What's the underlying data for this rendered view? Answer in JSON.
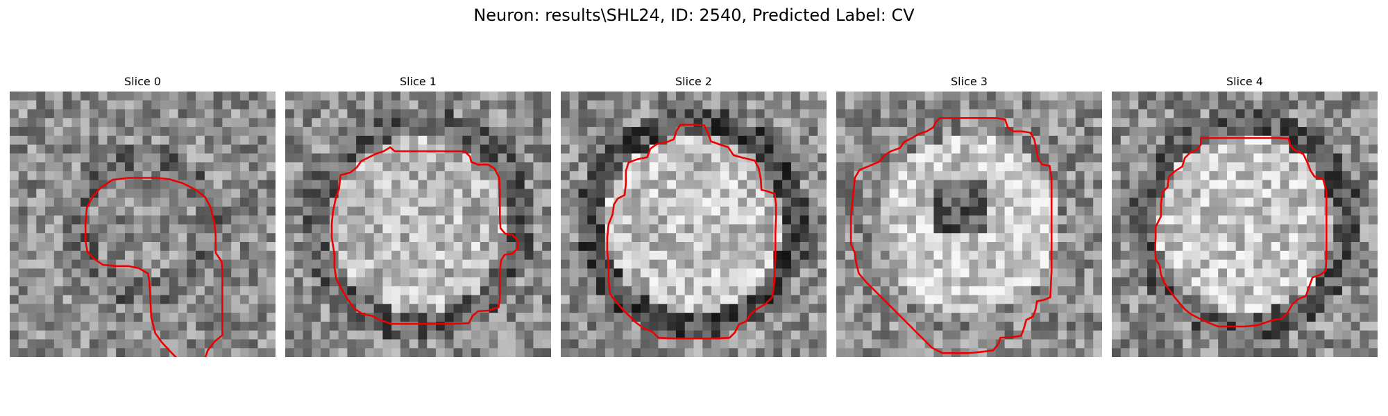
{
  "figure": {
    "title": "Neuron: results\\SHL24, ID: 2540, Predicted Label: CV",
    "contour_color": "#ee0000",
    "colormap": "gray"
  },
  "panels": [
    {
      "title": "Slice 0",
      "seed": 11,
      "inner_brightness": 0.55,
      "ring": 0.42,
      "contour": [
        [
          11,
          3.3
        ],
        [
          11,
          4.3
        ],
        [
          11.9,
          5.6
        ],
        [
          12,
          7
        ],
        [
          12,
          9
        ],
        [
          12,
          11
        ],
        [
          12,
          13
        ],
        [
          12,
          15
        ],
        [
          12,
          16.7
        ],
        [
          10.8,
          17.7
        ],
        [
          9.8,
          19
        ],
        [
          9.4,
          20.2
        ],
        [
          8,
          20.3
        ],
        [
          6,
          20.3
        ],
        [
          5.1,
          20.1
        ],
        [
          4.2,
          19.2
        ],
        [
          2.9,
          17.8
        ],
        [
          1.9,
          16.4
        ],
        [
          1.3,
          14
        ],
        [
          1.2,
          12
        ],
        [
          1.1,
          10
        ],
        [
          1,
          8.5
        ],
        [
          0.8,
          7.4
        ],
        [
          -0.6,
          6.6
        ],
        [
          -2.1,
          6.3
        ],
        [
          -4,
          6.3
        ],
        [
          -6,
          6.1
        ],
        [
          -7.3,
          5.2
        ],
        [
          -8.3,
          4.2
        ],
        [
          -8.6,
          2.5
        ],
        [
          -8.6,
          0
        ],
        [
          -8.4,
          -2.5
        ],
        [
          -7.5,
          -4.2
        ],
        [
          -6.3,
          -5.5
        ],
        [
          -4.5,
          -6.7
        ],
        [
          -2,
          -7
        ],
        [
          0,
          -7
        ],
        [
          2,
          -7
        ],
        [
          4,
          -6.8
        ],
        [
          6,
          -6.2
        ],
        [
          8,
          -5.2
        ],
        [
          9.4,
          -4.1
        ],
        [
          10.2,
          -2.6
        ],
        [
          10.8,
          -0.2
        ],
        [
          11,
          1.7
        ]
      ]
    },
    {
      "title": "Slice 1",
      "seed": 23,
      "inner_brightness": 0.72,
      "ring": 0.38,
      "contour": [
        [
          -3.5,
          -11
        ],
        [
          0,
          -11
        ],
        [
          4,
          -11
        ],
        [
          7,
          -11
        ],
        [
          7.8,
          -10.2
        ],
        [
          8,
          -9.4
        ],
        [
          9,
          -9
        ],
        [
          10.5,
          -9
        ],
        [
          11.5,
          -8.4
        ],
        [
          12.2,
          -7
        ],
        [
          12.3,
          -5
        ],
        [
          12.3,
          -3
        ],
        [
          12.3,
          -1
        ],
        [
          12.4,
          0.6
        ],
        [
          13.1,
          1.4
        ],
        [
          14.2,
          1.6
        ],
        [
          15,
          2.4
        ],
        [
          15,
          3.6
        ],
        [
          14.2,
          4.4
        ],
        [
          13,
          4.6
        ],
        [
          12.5,
          5.4
        ],
        [
          12.3,
          7
        ],
        [
          12.3,
          9
        ],
        [
          12.3,
          11
        ],
        [
          12.1,
          12.5
        ],
        [
          10.5,
          13
        ],
        [
          9,
          13.1
        ],
        [
          8.2,
          13.8
        ],
        [
          7.6,
          14.9
        ],
        [
          5,
          15
        ],
        [
          2,
          15
        ],
        [
          -1,
          15
        ],
        [
          -4,
          15
        ],
        [
          -5.8,
          14.4
        ],
        [
          -6.9,
          13.8
        ],
        [
          -8.4,
          13.5
        ],
        [
          -9.6,
          12.7
        ],
        [
          -10.6,
          11.3
        ],
        [
          -11.5,
          9.8
        ],
        [
          -12.3,
          8.3
        ],
        [
          -12.6,
          6.5
        ],
        [
          -12.6,
          4.5
        ],
        [
          -13,
          2
        ],
        [
          -13,
          0
        ],
        [
          -12.8,
          -2
        ],
        [
          -12.4,
          -3.9
        ],
        [
          -11.9,
          -5.4
        ],
        [
          -11.7,
          -7.4
        ],
        [
          -10.2,
          -7.8
        ],
        [
          -9.2,
          -8.6
        ],
        [
          -8.6,
          -9.5
        ],
        [
          -7.6,
          -10
        ],
        [
          -6.4,
          -10.6
        ],
        [
          -5.2,
          -11
        ],
        [
          -4.2,
          -11.6
        ]
      ]
    },
    {
      "title": "Slice 2",
      "seed": 37,
      "inner_brightness": 0.75,
      "ring": 0.3,
      "contour": [
        [
          -2,
          -15
        ],
        [
          0,
          -15
        ],
        [
          1.6,
          -14.9
        ],
        [
          2.2,
          -13.6
        ],
        [
          2.6,
          -12.5
        ],
        [
          4,
          -12
        ],
        [
          5.2,
          -11.6
        ],
        [
          6,
          -10.4
        ],
        [
          7.5,
          -10
        ],
        [
          9.2,
          -9.6
        ],
        [
          9.8,
          -8.4
        ],
        [
          10.1,
          -6.8
        ],
        [
          10.2,
          -5.2
        ],
        [
          11,
          -5
        ],
        [
          12.2,
          -4.6
        ],
        [
          12.4,
          -3
        ],
        [
          12.4,
          -1
        ],
        [
          12.3,
          1
        ],
        [
          12.3,
          3
        ],
        [
          12.3,
          5
        ],
        [
          12.2,
          7
        ],
        [
          12.1,
          9
        ],
        [
          11.8,
          11
        ],
        [
          10.8,
          12
        ],
        [
          9.6,
          12.7
        ],
        [
          8.6,
          13.5
        ],
        [
          7.9,
          14.6
        ],
        [
          6.8,
          15.1
        ],
        [
          6.2,
          16.3
        ],
        [
          5.4,
          17.1
        ],
        [
          3,
          17.2
        ],
        [
          0,
          17.2
        ],
        [
          -3,
          17.2
        ],
        [
          -5.3,
          17.1
        ],
        [
          -6.2,
          16.2
        ],
        [
          -7.6,
          15.6
        ],
        [
          -8.8,
          14.7
        ],
        [
          -9.7,
          13.8
        ],
        [
          -10.6,
          12.9
        ],
        [
          -11.3,
          12.1
        ],
        [
          -12,
          11.3
        ],
        [
          -12.6,
          10.4
        ],
        [
          -12.8,
          8.5
        ],
        [
          -12.8,
          6
        ],
        [
          -13,
          4
        ],
        [
          -13,
          2
        ],
        [
          -12.8,
          0
        ],
        [
          -12.2,
          -1.5
        ],
        [
          -12,
          -3
        ],
        [
          -11.4,
          -3.9
        ],
        [
          -10.4,
          -4.4
        ],
        [
          -10.2,
          -6
        ],
        [
          -10.2,
          -8
        ],
        [
          -9.8,
          -9.3
        ],
        [
          -8.5,
          -9.8
        ],
        [
          -7,
          -10.1
        ],
        [
          -6.5,
          -11.4
        ],
        [
          -5.5,
          -12.1
        ],
        [
          -4,
          -12.4
        ],
        [
          -3,
          -12.8
        ],
        [
          -2.6,
          -14
        ]
      ]
    },
    {
      "title": "Slice 3",
      "seed": 51,
      "inner_brightness": 0.8,
      "ring": 0.55,
      "contour": [
        [
          -4.4,
          -16
        ],
        [
          0,
          -16
        ],
        [
          4,
          -16
        ],
        [
          5.4,
          -15.8
        ],
        [
          5.8,
          -14.6
        ],
        [
          6.6,
          -14
        ],
        [
          8,
          -14
        ],
        [
          9.2,
          -13.8
        ],
        [
          9.8,
          -12.8
        ],
        [
          10.1,
          -11.3
        ],
        [
          10.4,
          -9.8
        ],
        [
          11,
          -9
        ],
        [
          12.1,
          -8.8
        ],
        [
          12.4,
          -7
        ],
        [
          12.4,
          -5
        ],
        [
          12.4,
          -3
        ],
        [
          12.4,
          -1
        ],
        [
          12.4,
          1
        ],
        [
          12.4,
          3
        ],
        [
          12.4,
          5
        ],
        [
          12.4,
          7
        ],
        [
          12.3,
          9
        ],
        [
          12.2,
          11
        ],
        [
          11.2,
          11.4
        ],
        [
          10.2,
          11.6
        ],
        [
          10,
          12.8
        ],
        [
          9.6,
          13.9
        ],
        [
          8.6,
          14.4
        ],
        [
          8.2,
          15.8
        ],
        [
          7.8,
          16.8
        ],
        [
          6.4,
          17
        ],
        [
          4.7,
          17.1
        ],
        [
          4.4,
          18
        ],
        [
          3.6,
          19
        ],
        [
          2,
          19.2
        ],
        [
          0,
          19.4
        ],
        [
          -2,
          19.4
        ],
        [
          -4,
          19.4
        ],
        [
          -5.6,
          18.6
        ],
        [
          -6.6,
          17.6
        ],
        [
          -7.6,
          16.6
        ],
        [
          -8.6,
          15.6
        ],
        [
          -9.6,
          14.6
        ],
        [
          -10.6,
          13.6
        ],
        [
          -11.6,
          12.6
        ],
        [
          -12.6,
          11.6
        ],
        [
          -13.6,
          10.6
        ],
        [
          -14.6,
          9.6
        ],
        [
          -15.6,
          8.6
        ],
        [
          -16.6,
          7.4
        ],
        [
          -17,
          5.8
        ],
        [
          -17.2,
          4.3
        ],
        [
          -17.8,
          3
        ],
        [
          -17.8,
          1
        ],
        [
          -17.8,
          -1
        ],
        [
          -17.6,
          -3
        ],
        [
          -17.4,
          -5
        ],
        [
          -17.2,
          -7
        ],
        [
          -16.5,
          -8.2
        ],
        [
          -15,
          -8.8
        ],
        [
          -13.6,
          -9.4
        ],
        [
          -12.7,
          -10.4
        ],
        [
          -11.8,
          -11
        ],
        [
          -10.4,
          -11.5
        ],
        [
          -9.8,
          -12.4
        ],
        [
          -8.6,
          -13
        ],
        [
          -7.6,
          -13.6
        ],
        [
          -6.4,
          -14
        ],
        [
          -5.4,
          -14.6
        ],
        [
          -5,
          -15.4
        ]
      ]
    },
    {
      "title": "Slice 4",
      "seed": 67,
      "inner_brightness": 0.78,
      "ring": 0.35,
      "contour": [
        [
          -6.6,
          -13
        ],
        [
          -4,
          -13
        ],
        [
          -1,
          -13
        ],
        [
          2,
          -13
        ],
        [
          5,
          -13
        ],
        [
          6.6,
          -12.9
        ],
        [
          6.9,
          -11.8
        ],
        [
          7.6,
          -11.1
        ],
        [
          8.8,
          -10.6
        ],
        [
          9.4,
          -9.4
        ],
        [
          9.9,
          -8.1
        ],
        [
          10.5,
          -7.2
        ],
        [
          11.8,
          -6.8
        ],
        [
          12.3,
          -5
        ],
        [
          12.3,
          -3
        ],
        [
          12.3,
          -1
        ],
        [
          12.3,
          1
        ],
        [
          12.3,
          3
        ],
        [
          12.3,
          5
        ],
        [
          12.2,
          7
        ],
        [
          11.4,
          7.6
        ],
        [
          10.2,
          8
        ],
        [
          9.7,
          9.4
        ],
        [
          9.2,
          10.8
        ],
        [
          8,
          11.3
        ],
        [
          7.2,
          12
        ],
        [
          6.4,
          13.4
        ],
        [
          5.6,
          14.2
        ],
        [
          4,
          14.5
        ],
        [
          2,
          15.2
        ],
        [
          0,
          15.4
        ],
        [
          -2,
          15.4
        ],
        [
          -4,
          15.4
        ],
        [
          -5.5,
          14.8
        ],
        [
          -6.8,
          14.2
        ],
        [
          -8,
          13.6
        ],
        [
          -9,
          12.8
        ],
        [
          -9.8,
          11.9
        ],
        [
          -10.6,
          10.9
        ],
        [
          -11.4,
          9.8
        ],
        [
          -12.1,
          8.8
        ],
        [
          -12.6,
          7.6
        ],
        [
          -12.8,
          6.2
        ],
        [
          -13.4,
          5.2
        ],
        [
          -13.5,
          3.6
        ],
        [
          -13.4,
          2
        ],
        [
          -13.4,
          0.4
        ],
        [
          -12.6,
          -1.2
        ],
        [
          -12.6,
          -3
        ],
        [
          -12.4,
          -4.8
        ],
        [
          -11.6,
          -5.6
        ],
        [
          -11.4,
          -7.2
        ],
        [
          -10.5,
          -8
        ],
        [
          -9.4,
          -8.7
        ],
        [
          -9,
          -10
        ],
        [
          -8.2,
          -10.8
        ],
        [
          -7.2,
          -11.2
        ],
        [
          -6.6,
          -12
        ]
      ]
    }
  ]
}
